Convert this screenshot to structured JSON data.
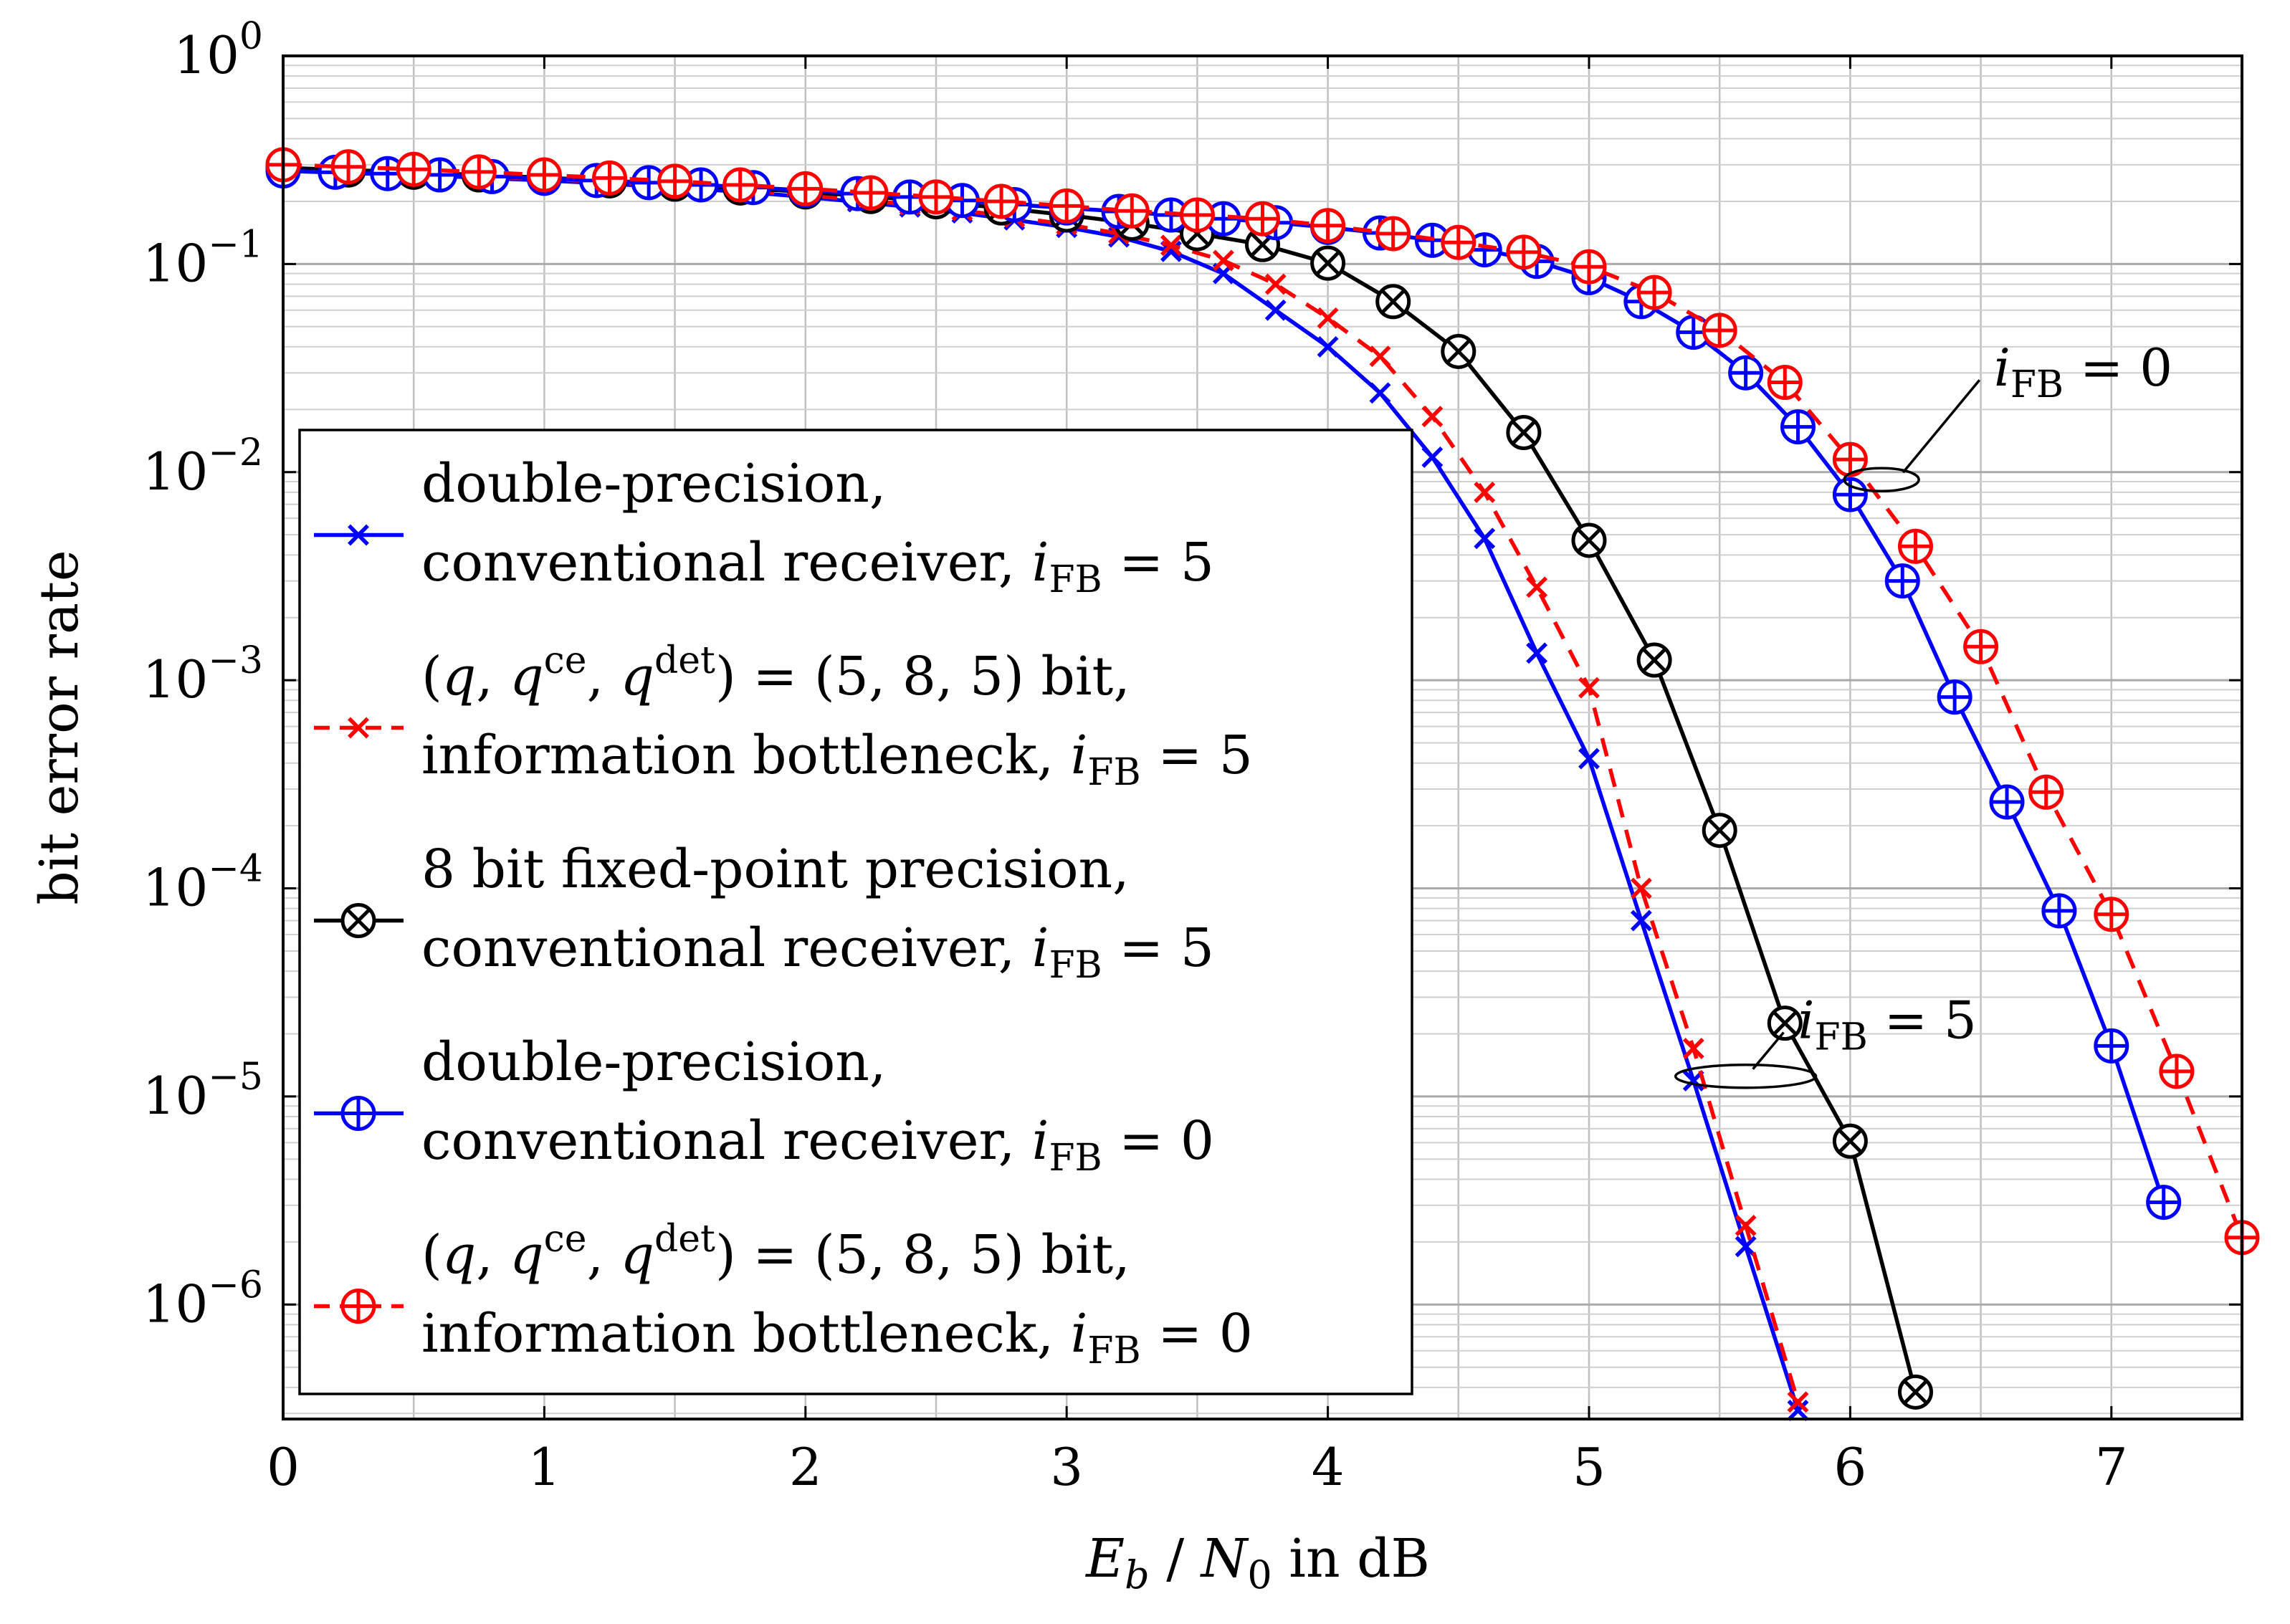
{
  "chart_data": {
    "type": "line",
    "title": "",
    "xlabel": "E_b / N_0 in dB",
    "xlabel_parts": {
      "e": "E",
      "e_sub": "b",
      "slash": " / ",
      "n": "N",
      "n_sub": "0",
      "suffix": " in dB"
    },
    "ylabel": "bit error rate",
    "x_scale": "linear",
    "y_scale": "log",
    "xlim": [
      0,
      7.5
    ],
    "ylim_exp": [
      -6.55,
      0
    ],
    "x_ticks": [
      0,
      1,
      2,
      3,
      4,
      5,
      6,
      7
    ],
    "x_tick_labels": [
      "0",
      "1",
      "2",
      "3",
      "4",
      "5",
      "6",
      "7"
    ],
    "y_ticks": [
      {
        "exp": 0,
        "base": "10",
        "sup": "0"
      },
      {
        "exp": -1,
        "base": "10",
        "sup": "−1"
      },
      {
        "exp": -2,
        "base": "10",
        "sup": "−2"
      },
      {
        "exp": -3,
        "base": "10",
        "sup": "−3"
      },
      {
        "exp": -4,
        "base": "10",
        "sup": "−4"
      },
      {
        "exp": -5,
        "base": "10",
        "sup": "−5"
      },
      {
        "exp": -6,
        "base": "10",
        "sup": "−6"
      }
    ],
    "grid": true,
    "legend_position": "center-left",
    "series": [
      {
        "name": "double-precision, conventional receiver, i_FB = 5",
        "legend": [
          {
            "text": "double-precision,"
          },
          {
            "text": "conventional receiver, ",
            "math": "i",
            "sub": "FB",
            "tail": " = 5"
          }
        ],
        "color": "#0000ff",
        "dash": "solid",
        "marker": "cross",
        "x": [
          0,
          0.2,
          0.4,
          0.6,
          0.8,
          1.0,
          1.2,
          1.4,
          1.6,
          1.8,
          2.0,
          2.2,
          2.4,
          2.6,
          2.8,
          3.0,
          3.2,
          3.4,
          3.6,
          3.8,
          4.0,
          4.2,
          4.4,
          4.6,
          4.8,
          5.0,
          5.2,
          5.4,
          5.6,
          5.8
        ],
        "y": [
          0.28,
          0.275,
          0.27,
          0.265,
          0.258,
          0.252,
          0.245,
          0.237,
          0.229,
          0.22,
          0.21,
          0.199,
          0.188,
          0.176,
          0.163,
          0.15,
          0.135,
          0.115,
          0.09,
          0.06,
          0.04,
          0.024,
          0.0118,
          0.0048,
          0.00135,
          0.00042,
          7e-05,
          1.19e-05,
          1.9e-06,
          3.1e-07
        ]
      },
      {
        "name": "(q, q^ce, q^det) = (5,8,5) bit, information bottleneck, i_FB = 5",
        "legend": [
          {
            "text": "(",
            "math": "q",
            "tail": ", ",
            "math2": "q",
            "sup2": "ce",
            "tail2": ", ",
            "math3": "q",
            "sup3": "det",
            "tail3": ") = (5, 8, 5) bit,"
          },
          {
            "text": "information bottleneck, ",
            "math": "i",
            "sub": "FB",
            "tail": " = 5"
          }
        ],
        "color": "#ff0000",
        "dash": "dashed",
        "marker": "cross",
        "x": [
          0,
          0.2,
          0.4,
          0.6,
          0.8,
          1.0,
          1.2,
          1.4,
          1.6,
          1.8,
          2.0,
          2.2,
          2.4,
          2.6,
          2.8,
          3.0,
          3.2,
          3.4,
          3.6,
          3.8,
          4.0,
          4.2,
          4.4,
          4.6,
          4.8,
          5.0,
          5.2,
          5.4,
          5.6,
          5.8
        ],
        "y": [
          0.285,
          0.28,
          0.274,
          0.268,
          0.262,
          0.256,
          0.249,
          0.241,
          0.233,
          0.224,
          0.214,
          0.204,
          0.193,
          0.181,
          0.168,
          0.155,
          0.14,
          0.123,
          0.104,
          0.08,
          0.055,
          0.036,
          0.0185,
          0.008,
          0.0028,
          0.00092,
          0.0001,
          1.7e-05,
          2.4e-06,
          3.4e-07
        ]
      },
      {
        "name": "8 bit fixed-point precision, conventional receiver, i_FB = 5",
        "legend": [
          {
            "text": "8 bit fixed-point precision,"
          },
          {
            "text": "conventional receiver, ",
            "math": "i",
            "sub": "FB",
            "tail": " = 5"
          }
        ],
        "color": "#000000",
        "dash": "solid",
        "marker": "circle-times",
        "x": [
          0,
          0.25,
          0.5,
          0.75,
          1.0,
          1.25,
          1.5,
          1.75,
          2.0,
          2.25,
          2.5,
          2.75,
          3.0,
          3.25,
          3.5,
          3.75,
          4.0,
          4.25,
          4.5,
          4.75,
          5.0,
          5.25,
          5.5,
          5.75,
          6.0,
          6.25
        ],
        "y": [
          0.29,
          0.283,
          0.276,
          0.268,
          0.26,
          0.251,
          0.242,
          0.232,
          0.222,
          0.211,
          0.199,
          0.186,
          0.172,
          0.157,
          0.14,
          0.124,
          0.101,
          0.066,
          0.038,
          0.0155,
          0.0047,
          0.00125,
          0.00019,
          2.25e-05,
          6.1e-06,
          3.8e-07
        ]
      },
      {
        "name": "double-precision, conventional receiver, i_FB = 0",
        "legend": [
          {
            "text": "double-precision,"
          },
          {
            "text": "conventional receiver, ",
            "math": "i",
            "sub": "FB",
            "tail": " = 0"
          }
        ],
        "color": "#0000ff",
        "dash": "solid",
        "marker": "circle-plus",
        "x": [
          0,
          0.2,
          0.4,
          0.6,
          0.8,
          1.0,
          1.2,
          1.4,
          1.6,
          1.8,
          2.0,
          2.2,
          2.4,
          2.6,
          2.8,
          3.0,
          3.2,
          3.4,
          3.6,
          3.8,
          4.0,
          4.2,
          4.4,
          4.6,
          4.8,
          5.0,
          5.2,
          5.4,
          5.6,
          5.8,
          6.0,
          6.2,
          6.4,
          6.6,
          6.8,
          7.0,
          7.2
        ],
        "y": [
          0.28,
          0.276,
          0.272,
          0.268,
          0.263,
          0.258,
          0.252,
          0.246,
          0.24,
          0.233,
          0.226,
          0.218,
          0.21,
          0.202,
          0.193,
          0.186,
          0.179,
          0.172,
          0.165,
          0.158,
          0.15,
          0.141,
          0.13,
          0.117,
          0.103,
          0.086,
          0.066,
          0.047,
          0.03,
          0.0165,
          0.0078,
          0.003,
          0.00083,
          0.00026,
          7.8e-05,
          1.75e-05,
          3.1e-06
        ]
      },
      {
        "name": "(q, q^ce, q^det) = (5,8,5) bit, information bottleneck, i_FB = 0",
        "legend": [
          {
            "text": "(",
            "math": "q",
            "tail": ", ",
            "math2": "q",
            "sup2": "ce",
            "tail2": ", ",
            "math3": "q",
            "sup3": "det",
            "tail3": ") = (5, 8, 5) bit,"
          },
          {
            "text": "information bottleneck, ",
            "math": "i",
            "sub": "FB",
            "tail": " = 0"
          }
        ],
        "color": "#ff0000",
        "dash": "dashed",
        "marker": "circle-plus",
        "x": [
          0,
          0.25,
          0.5,
          0.75,
          1.0,
          1.25,
          1.5,
          1.75,
          2.0,
          2.25,
          2.5,
          2.75,
          3.0,
          3.25,
          3.5,
          3.75,
          4.0,
          4.25,
          4.5,
          4.75,
          5.0,
          5.25,
          5.5,
          5.75,
          6.0,
          6.25,
          6.5,
          6.75,
          7.0,
          7.25,
          7.5
        ],
        "y": [
          0.3,
          0.293,
          0.285,
          0.277,
          0.268,
          0.259,
          0.25,
          0.24,
          0.23,
          0.22,
          0.21,
          0.2,
          0.19,
          0.18,
          0.172,
          0.165,
          0.153,
          0.14,
          0.127,
          0.114,
          0.097,
          0.073,
          0.048,
          0.027,
          0.0115,
          0.0044,
          0.00145,
          0.00029,
          7.5e-05,
          1.32e-05,
          2.1e-06
        ]
      }
    ],
    "annotations": [
      {
        "math": "i",
        "sub": "FB",
        "tail": " = 0",
        "ellipse_x": 6.12,
        "ellipse_y": 0.0092,
        "text_x": 6.55,
        "text_y": 0.03
      },
      {
        "math": "i",
        "sub": "FB",
        "tail": " = 5",
        "ellipse_x": 5.6,
        "ellipse_y": 1.25e-05,
        "text_x": 5.8,
        "text_y": 2.2e-05
      }
    ]
  }
}
